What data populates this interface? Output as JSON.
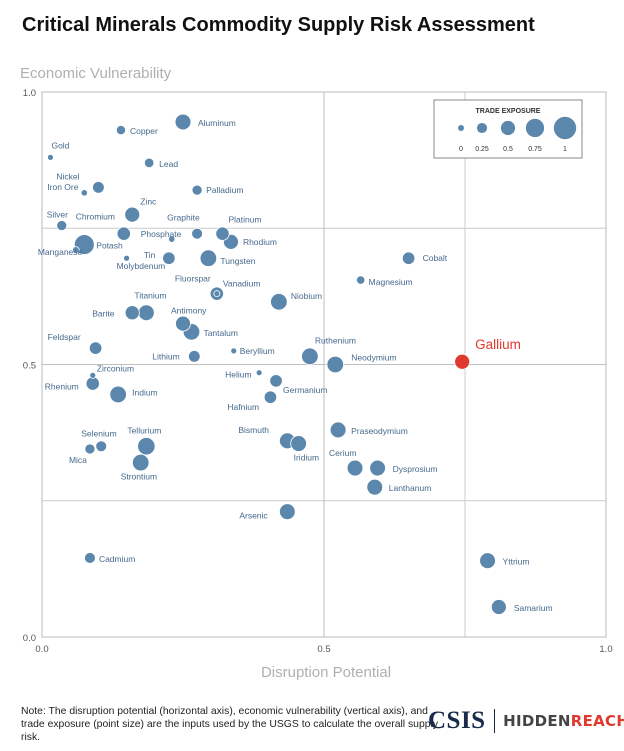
{
  "title": "Critical Minerals Commodity Supply Risk Assessment",
  "note": "Note: The disruption potential (horizontal axis), economic vulnerability (vertical axis), and trade exposure (point size) are the inputs used by the USGS to calculate the overall supply risk.",
  "logo": {
    "org": "CSIS",
    "partner_a": "HIDDEN",
    "partner_b": "REACH"
  },
  "colors": {
    "point": "#5b87ad",
    "highlight": "#e0392d",
    "grid": "#cccccc",
    "axis_label": "#b0b0b0",
    "label": "#46698d"
  },
  "chart_data": {
    "type": "scatter",
    "xlabel": "Disruption Potential",
    "ylabel": "Economic Vulnerability",
    "xlim": [
      0,
      1
    ],
    "ylim": [
      0,
      1
    ],
    "xticks": [
      "0.0",
      "0.5",
      "1.0"
    ],
    "yticks": [
      "0.0",
      "0.5",
      "1.0"
    ],
    "grid": true,
    "legend": {
      "title": "TRADE EXPOSURE",
      "placement": "top-right",
      "sizes": [
        0,
        0.25,
        0.5,
        0.75,
        1
      ],
      "labels": [
        "0",
        "0.25",
        "0.5",
        "0.75",
        "1"
      ]
    },
    "points": [
      {
        "name": "Gold",
        "x": 0.015,
        "y": 0.88,
        "size": 0.0
      },
      {
        "name": "Copper",
        "x": 0.14,
        "y": 0.93,
        "size": 0.2
      },
      {
        "name": "Aluminum",
        "x": 0.25,
        "y": 0.945,
        "size": 0.6
      },
      {
        "name": "Lead",
        "x": 0.19,
        "y": 0.87,
        "size": 0.22
      },
      {
        "name": "Nickel",
        "x": 0.1,
        "y": 0.825,
        "size": 0.35
      },
      {
        "name": "Iron Ore",
        "x": 0.075,
        "y": 0.815,
        "size": 0.03
      },
      {
        "name": "Palladium",
        "x": 0.275,
        "y": 0.82,
        "size": 0.25
      },
      {
        "name": "Zinc",
        "x": 0.16,
        "y": 0.775,
        "size": 0.55
      },
      {
        "name": "Silver",
        "x": 0.035,
        "y": 0.755,
        "size": 0.25
      },
      {
        "name": "Chromium",
        "x": 0.145,
        "y": 0.74,
        "size": 0.45
      },
      {
        "name": "Potash",
        "x": 0.075,
        "y": 0.72,
        "size": 0.85
      },
      {
        "name": "Graphite",
        "x": 0.275,
        "y": 0.74,
        "size": 0.3
      },
      {
        "name": "Phosphate",
        "x": 0.23,
        "y": 0.73,
        "size": 0.03
      },
      {
        "name": "Platinum",
        "x": 0.32,
        "y": 0.74,
        "size": 0.45
      },
      {
        "name": "Rhodium",
        "x": 0.335,
        "y": 0.725,
        "size": 0.55
      },
      {
        "name": "Manganese",
        "x": 0.06,
        "y": 0.71,
        "size": 0.05
      },
      {
        "name": "Molybdenum",
        "x": 0.15,
        "y": 0.695,
        "size": 0.0
      },
      {
        "name": "Tin",
        "x": 0.225,
        "y": 0.695,
        "size": 0.4
      },
      {
        "name": "Tungsten",
        "x": 0.295,
        "y": 0.695,
        "size": 0.65
      },
      {
        "name": "Cobalt",
        "x": 0.65,
        "y": 0.695,
        "size": 0.4
      },
      {
        "name": "Magnesium",
        "x": 0.565,
        "y": 0.655,
        "size": 0.15
      },
      {
        "name": "Fluorspar",
        "x": 0.31,
        "y": 0.63,
        "size": 0.45
      },
      {
        "name": "Vanadium",
        "x": 0.31,
        "y": 0.63,
        "size": 0.0
      },
      {
        "name": "Niobium",
        "x": 0.42,
        "y": 0.615,
        "size": 0.65
      },
      {
        "name": "Titanium",
        "x": 0.185,
        "y": 0.595,
        "size": 0.6
      },
      {
        "name": "Barite",
        "x": 0.16,
        "y": 0.595,
        "size": 0.5
      },
      {
        "name": "Antimony",
        "x": 0.25,
        "y": 0.575,
        "size": 0.55
      },
      {
        "name": "Tantalum",
        "x": 0.265,
        "y": 0.56,
        "size": 0.65
      },
      {
        "name": "Feldspar",
        "x": 0.095,
        "y": 0.53,
        "size": 0.4
      },
      {
        "name": "Beryllium",
        "x": 0.34,
        "y": 0.525,
        "size": 0.0
      },
      {
        "name": "Lithium",
        "x": 0.27,
        "y": 0.515,
        "size": 0.35
      },
      {
        "name": "Ruthenium",
        "x": 0.475,
        "y": 0.515,
        "size": 0.65
      },
      {
        "name": "Neodymium",
        "x": 0.52,
        "y": 0.5,
        "size": 0.65
      },
      {
        "name": "Gallium",
        "x": 0.745,
        "y": 0.505,
        "size": 0.55,
        "highlight": true
      },
      {
        "name": "Zirconium",
        "x": 0.09,
        "y": 0.48,
        "size": 0.0
      },
      {
        "name": "Helium",
        "x": 0.385,
        "y": 0.485,
        "size": 0.0
      },
      {
        "name": "Germanium",
        "x": 0.415,
        "y": 0.47,
        "size": 0.4
      },
      {
        "name": "Rhenium",
        "x": 0.09,
        "y": 0.465,
        "size": 0.45
      },
      {
        "name": "Indium",
        "x": 0.135,
        "y": 0.445,
        "size": 0.65
      },
      {
        "name": "Hafnium",
        "x": 0.405,
        "y": 0.44,
        "size": 0.4
      },
      {
        "name": "Praseodymium",
        "x": 0.525,
        "y": 0.38,
        "size": 0.6
      },
      {
        "name": "Selenium",
        "x": 0.105,
        "y": 0.35,
        "size": 0.3
      },
      {
        "name": "Tellurium",
        "x": 0.185,
        "y": 0.35,
        "size": 0.7
      },
      {
        "name": "Bismuth",
        "x": 0.435,
        "y": 0.36,
        "size": 0.6
      },
      {
        "name": "Iridium",
        "x": 0.455,
        "y": 0.355,
        "size": 0.6
      },
      {
        "name": "Mica",
        "x": 0.085,
        "y": 0.345,
        "size": 0.25
      },
      {
        "name": "Cerium",
        "x": 0.555,
        "y": 0.31,
        "size": 0.6
      },
      {
        "name": "Dysprosium",
        "x": 0.595,
        "y": 0.31,
        "size": 0.6
      },
      {
        "name": "Strontium",
        "x": 0.175,
        "y": 0.32,
        "size": 0.65
      },
      {
        "name": "Lanthanum",
        "x": 0.59,
        "y": 0.275,
        "size": 0.6
      },
      {
        "name": "Arsenic",
        "x": 0.435,
        "y": 0.23,
        "size": 0.6
      },
      {
        "name": "Cadmium",
        "x": 0.085,
        "y": 0.145,
        "size": 0.3
      },
      {
        "name": "Yttrium",
        "x": 0.79,
        "y": 0.14,
        "size": 0.6
      },
      {
        "name": "Samarium",
        "x": 0.81,
        "y": 0.055,
        "size": 0.55
      }
    ]
  }
}
